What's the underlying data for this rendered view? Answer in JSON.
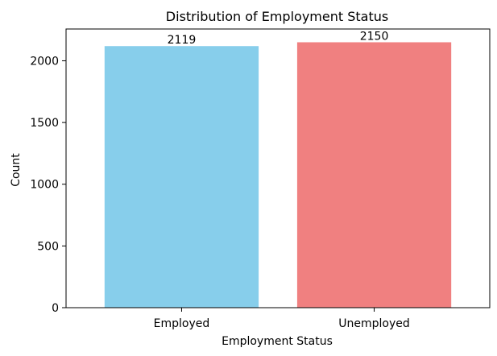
{
  "chart_data": {
    "type": "bar",
    "title": "Distribution of Employment Status",
    "xlabel": "Employment Status",
    "ylabel": "Count",
    "categories": [
      "Employed",
      "Unemployed"
    ],
    "values": [
      2119,
      2150
    ],
    "data_labels": [
      "2119",
      "2150"
    ],
    "bar_colors": [
      "#87ceeb",
      "#f08080"
    ],
    "ylim": [
      0,
      2257.5
    ],
    "yticks": [
      0,
      500,
      1000,
      1500,
      2000
    ],
    "ytick_labels": [
      "0",
      "500",
      "1000",
      "1500",
      "2000"
    ],
    "grid": false,
    "legend": "none"
  }
}
